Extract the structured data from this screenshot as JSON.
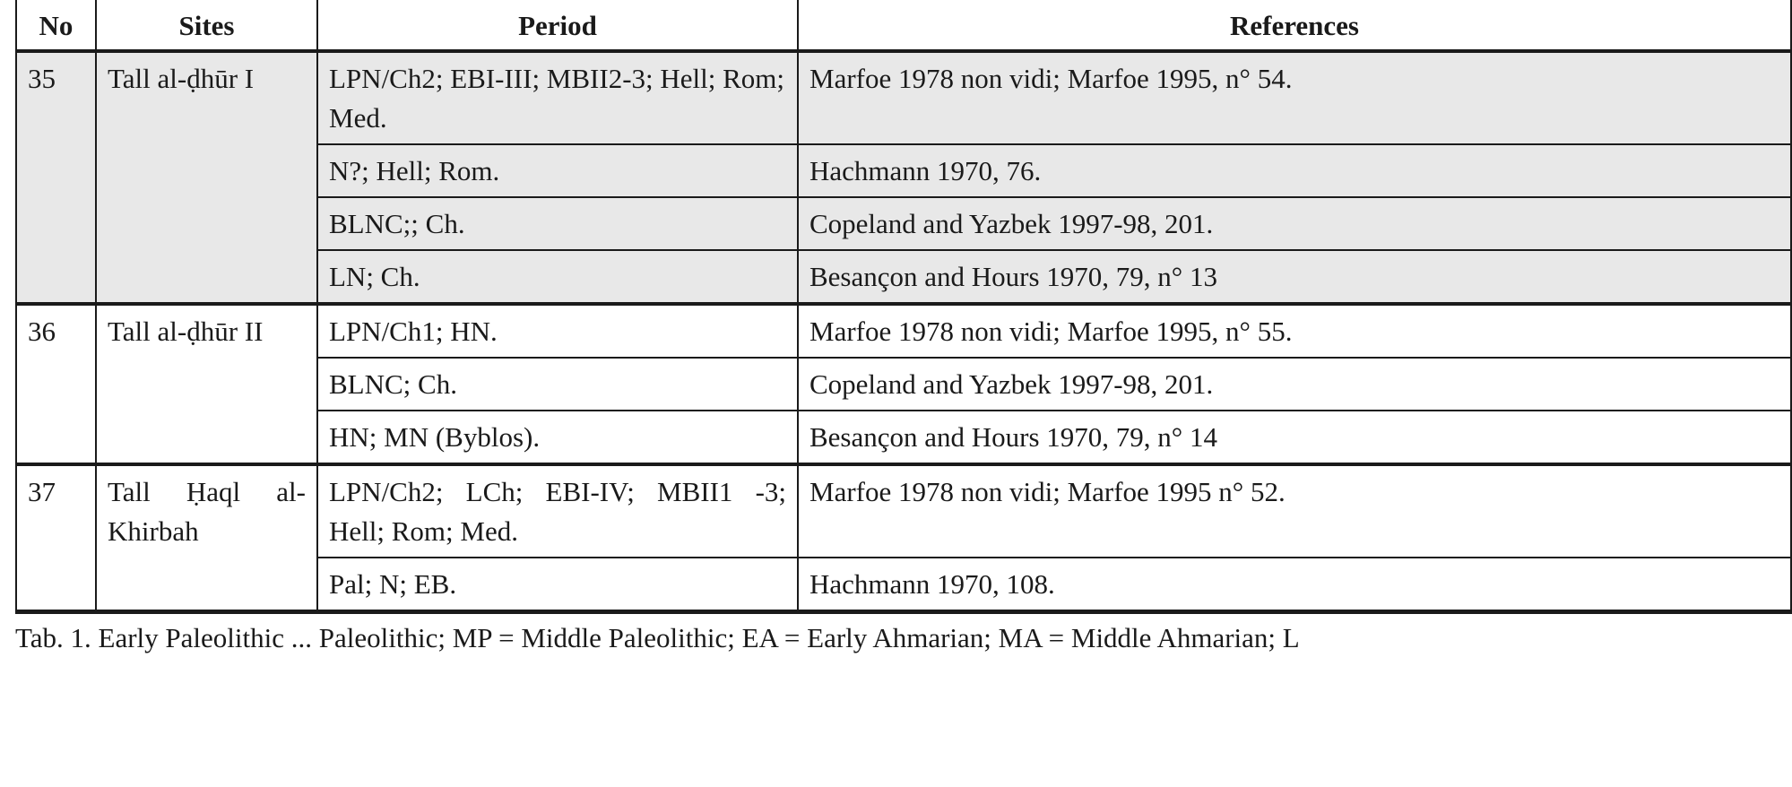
{
  "table": {
    "headers": [
      "No",
      "Sites",
      "Period",
      "References"
    ],
    "groups": [
      {
        "no": "35",
        "site": "Tall al-ḍhūr I",
        "rows": [
          {
            "period": "LPN/Ch2; EBI-III; MBII2-3; Hell; Rom; Med.",
            "reference": "Marfoe 1978 non vidi; Marfoe 1995, n° 54."
          },
          {
            "period": "N?; Hell; Rom.",
            "reference": "Hachmann 1970, 76."
          },
          {
            "period": "BLNC;; Ch.",
            "reference": "Copeland and Yazbek 1997-98, 201."
          },
          {
            "period": "LN; Ch.",
            "reference": "Besançon and Hours 1970, 79, n° 13"
          }
        ]
      },
      {
        "no": "36",
        "site": "Tall al-ḍhūr II",
        "rows": [
          {
            "period": "LPN/Ch1; HN.",
            "reference": "Marfoe 1978 non vidi; Marfoe 1995, n° 55."
          },
          {
            "period": "BLNC; Ch.",
            "reference": "Copeland and Yazbek 1997-98, 201."
          },
          {
            "period": "HN; MN (Byblos).",
            "reference": "Besançon and Hours 1970, 79, n° 14"
          }
        ]
      },
      {
        "no": "37",
        "site": "Tall Ḥaql al-Khirbah",
        "rows": [
          {
            "period": "LPN/Ch2; LCh; EBI-IV; MBII1 -3; Hell; Rom; Med.",
            "reference": "Marfoe 1978 non vidi; Marfoe 1995 n° 52."
          },
          {
            "period": "Pal; N; EB.",
            "reference": "Hachmann 1970, 108."
          }
        ]
      }
    ],
    "highlight_color": "#e8e8e8"
  },
  "caption": "Tab. 1. Early Paleolithic ... Paleolithic; MP = Middle Paleolithic; EA = Early Ahmarian; MA = Middle Ahmarian; L"
}
